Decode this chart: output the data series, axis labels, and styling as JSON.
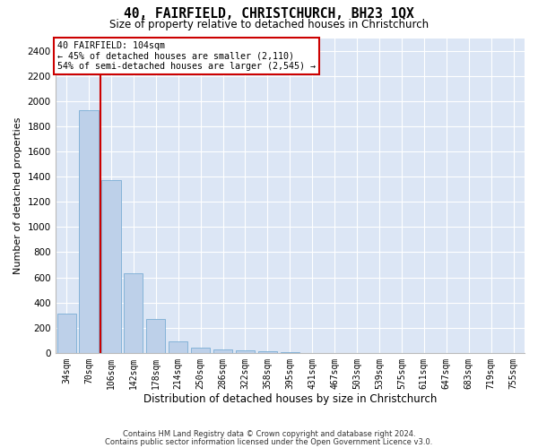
{
  "title1": "40, FAIRFIELD, CHRISTCHURCH, BH23 1QX",
  "title2": "Size of property relative to detached houses in Christchurch",
  "xlabel": "Distribution of detached houses by size in Christchurch",
  "ylabel": "Number of detached properties",
  "footnote1": "Contains HM Land Registry data © Crown copyright and database right 2024.",
  "footnote2": "Contains public sector information licensed under the Open Government Licence v3.0.",
  "categories": [
    "34sqm",
    "70sqm",
    "106sqm",
    "142sqm",
    "178sqm",
    "214sqm",
    "250sqm",
    "286sqm",
    "322sqm",
    "358sqm",
    "395sqm",
    "431sqm",
    "467sqm",
    "503sqm",
    "539sqm",
    "575sqm",
    "611sqm",
    "647sqm",
    "683sqm",
    "719sqm",
    "755sqm"
  ],
  "values": [
    310,
    1930,
    1370,
    630,
    270,
    90,
    45,
    25,
    18,
    12,
    8,
    0,
    0,
    0,
    0,
    0,
    0,
    0,
    0,
    0,
    0
  ],
  "bar_color": "#bdd0e9",
  "bar_edge_color": "#7aadd4",
  "background_color": "#dce6f5",
  "grid_color": "#ffffff",
  "annotation_box_color": "#cc0000",
  "vline_color": "#cc0000",
  "vline_x": 1.5,
  "annotation_title": "40 FAIRFIELD: 104sqm",
  "annotation_line1": "← 45% of detached houses are smaller (2,110)",
  "annotation_line2": "54% of semi-detached houses are larger (2,545) →",
  "ylim": [
    0,
    2500
  ],
  "yticks": [
    0,
    200,
    400,
    600,
    800,
    1000,
    1200,
    1400,
    1600,
    1800,
    2000,
    2200,
    2400
  ]
}
